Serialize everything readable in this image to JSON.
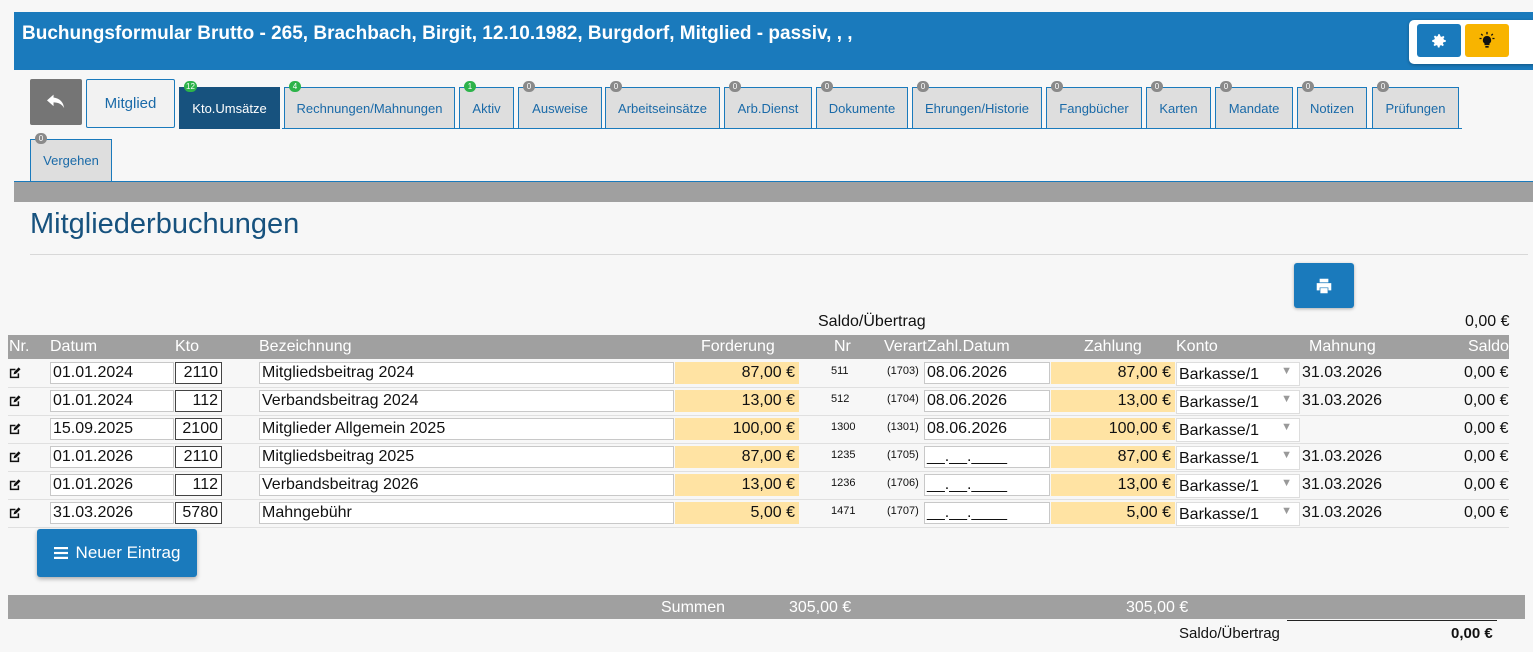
{
  "header": {
    "title": "Buchungsformular Brutto - 265, Brachbach, Birgit, 12.10.1982, Burgdorf, Mitglied - passiv, , ,"
  },
  "tabs": [
    {
      "label": "Mitglied",
      "badge": ""
    },
    {
      "label": "Kto.Umsätze",
      "badge": "12",
      "badge_color": "green"
    },
    {
      "label": "Rechnungen/Mahnungen",
      "badge": "4",
      "badge_color": "green"
    },
    {
      "label": "Aktiv",
      "badge": "1",
      "badge_color": "green"
    },
    {
      "label": "Ausweise",
      "badge": "0"
    },
    {
      "label": "Arbeitseinsätze",
      "badge": "0"
    },
    {
      "label": "Arb.Dienst",
      "badge": "0"
    },
    {
      "label": "Dokumente",
      "badge": "0"
    },
    {
      "label": "Ehrungen/Historie",
      "badge": "0"
    },
    {
      "label": "Fangbücher",
      "badge": "0"
    },
    {
      "label": "Karten",
      "badge": "0"
    },
    {
      "label": "Mandate",
      "badge": "0"
    },
    {
      "label": "Notizen",
      "badge": "0"
    },
    {
      "label": "Prüfungen",
      "badge": "0"
    },
    {
      "label": "Vergehen",
      "badge": "0"
    }
  ],
  "section": {
    "title": "Mitgliederbuchungen"
  },
  "saldo_top": {
    "label": "Saldo/Übertrag",
    "value": "0,00 €"
  },
  "columns": [
    "Nr.",
    "Datum",
    "Kto",
    "Bezeichnung",
    "Forderung",
    "Nr",
    "Verart",
    "Zahl.Datum",
    "Zahlung",
    "Konto",
    "Mahnung",
    "Saldo"
  ],
  "rows": [
    {
      "datum": "01.01.2024",
      "kto": "2110",
      "bez": "Mitgliedsbeitrag 2024",
      "forderung": "87,00 €",
      "nr": "511",
      "verart": "(1703)",
      "zahldatum": "08.06.2026",
      "zahlung": "87,00 €",
      "konto": "Barkasse/1",
      "mahnung": "31.03.2026",
      "saldo": "0,00 €"
    },
    {
      "datum": "01.01.2024",
      "kto": "112",
      "bez": "Verbandsbeitrag 2024",
      "forderung": "13,00 €",
      "nr": "512",
      "verart": "(1704)",
      "zahldatum": "08.06.2026",
      "zahlung": "13,00 €",
      "konto": "Barkasse/1",
      "mahnung": "31.03.2026",
      "saldo": "0,00 €"
    },
    {
      "datum": "15.09.2025",
      "kto": "2100",
      "bez": "Mitglieder Allgemein 2025",
      "forderung": "100,00 €",
      "nr": "1300",
      "verart": "(1301)",
      "zahldatum": "08.06.2026",
      "zahlung": "100,00 €",
      "konto": "Barkasse/1",
      "mahnung": "",
      "saldo": "0,00 €"
    },
    {
      "datum": "01.01.2026",
      "kto": "2110",
      "bez": "Mitgliedsbeitrag 2025",
      "forderung": "87,00 €",
      "nr": "1235",
      "verart": "(1705)",
      "zahldatum": "__.__.____",
      "zahlung": "87,00 €",
      "konto": "Barkasse/1",
      "mahnung": "31.03.2026",
      "saldo": "0,00 €"
    },
    {
      "datum": "01.01.2026",
      "kto": "112",
      "bez": "Verbandsbeitrag 2026",
      "forderung": "13,00 €",
      "nr": "1236",
      "verart": "(1706)",
      "zahldatum": "__.__.____",
      "zahlung": "13,00 €",
      "konto": "Barkasse/1",
      "mahnung": "31.03.2026",
      "saldo": "0,00 €"
    },
    {
      "datum": "31.03.2026",
      "kto": "5780",
      "bez": "Mahngebühr",
      "forderung": "5,00 €",
      "nr": "1471",
      "verart": "(1707)",
      "zahldatum": "__.__.____",
      "zahlung": "5,00 €",
      "konto": "Barkasse/1",
      "mahnung": "31.03.2026",
      "saldo": "0,00 €"
    }
  ],
  "new_entry_label": "Neuer Eintrag",
  "summen": {
    "label": "Summen",
    "forderung": "305,00 €",
    "zahlung": "305,00 €"
  },
  "saldo_bottom": {
    "label": "Saldo/Übertrag",
    "value": "0,00 €"
  },
  "icons": {
    "back": "back-arrow-icon",
    "settings": "gear-icon",
    "hint": "lightbulb-icon",
    "print": "printer-icon",
    "edit": "edit-icon",
    "list": "list-icon"
  },
  "colors": {
    "primary": "#1a7abc",
    "active_tab": "#17527e",
    "highlight": "#ffe3a3",
    "bulb_button": "#f8b400"
  }
}
